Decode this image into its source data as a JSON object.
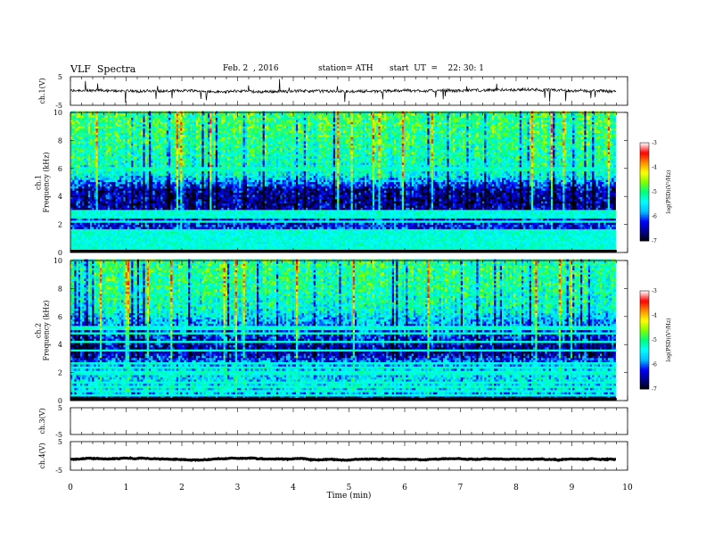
{
  "header": {
    "title": "VLF  Spectra",
    "date": "Feb. 2  , 2016",
    "station": "station= ATH",
    "start": "start  UT  =    22: 30: 1"
  },
  "chart_data": [
    {
      "type": "line",
      "name": "ch1-waveform",
      "ylabel": "ch.1(V)",
      "ylim": [
        -5,
        5
      ],
      "yticks": [
        "5",
        "-5"
      ],
      "baseline": 0,
      "noise": 0.5,
      "xlim": [
        0,
        10
      ]
    },
    {
      "type": "heatmap",
      "name": "ch1-spectrogram",
      "ylabel": "ch.1\nFrequency (kHz)",
      "ylim": [
        0,
        10
      ],
      "yticks": [
        "0",
        "2",
        "4",
        "6",
        "8",
        "10"
      ],
      "xlim": [
        0,
        10
      ],
      "data_end_min": 9.8,
      "colorbar": {
        "label": "log(PSD)(V²/Hz)",
        "range": [
          -7,
          -3
        ],
        "ticks": [
          "-3",
          "-4",
          "-5",
          "-6",
          "-7"
        ],
        "colors": [
          "#000000",
          "#00008b",
          "#0000ff",
          "#00bfff",
          "#00ffff",
          "#00ff7f",
          "#7fff00",
          "#ffff00",
          "#ff8c00",
          "#ff0000",
          "#ffffff"
        ]
      },
      "bands_khz": [
        0.2,
        0.4,
        0.6,
        0.8,
        1.0,
        1.2,
        1.5,
        2.2,
        2.6,
        2.9,
        6.0
      ],
      "profile": [
        {
          "f": 0,
          "v": -6.8
        },
        {
          "f": 0.5,
          "v": -6.0
        },
        {
          "f": 1.5,
          "v": -6.2
        },
        {
          "f": 2.5,
          "v": -6.3
        },
        {
          "f": 3.5,
          "v": -6.6
        },
        {
          "f": 4.5,
          "v": -6.5
        },
        {
          "f": 5.5,
          "v": -5.4
        },
        {
          "f": 6.5,
          "v": -5.2
        },
        {
          "f": 8,
          "v": -5.0
        },
        {
          "f": 10,
          "v": -4.9
        }
      ]
    },
    {
      "type": "heatmap",
      "name": "ch2-spectrogram",
      "ylabel": "ch.2\nFrequency (kHz)",
      "ylim": [
        0,
        10
      ],
      "yticks": [
        "0",
        "2",
        "4",
        "6",
        "8",
        "10"
      ],
      "xlim": [
        0,
        10
      ],
      "data_end_min": 9.8,
      "colorbar": {
        "label": "log(PSD)(V²/Hz)",
        "range": [
          -7,
          -3
        ],
        "ticks": [
          "-3",
          "-4",
          "-5",
          "-6",
          "-7"
        ],
        "colors": [
          "#000000",
          "#00008b",
          "#0000ff",
          "#00bfff",
          "#00ffff",
          "#00ff7f",
          "#7fff00",
          "#ffff00",
          "#ff8c00",
          "#ff0000",
          "#ffffff"
        ]
      },
      "bands_khz": [
        0.4,
        0.7,
        1.0,
        1.3,
        2.0,
        2.4,
        2.7,
        3.6,
        4.2,
        4.8,
        5.2
      ],
      "profile": [
        {
          "f": 0,
          "v": -6.9
        },
        {
          "f": 0.6,
          "v": -5.6
        },
        {
          "f": 1.5,
          "v": -5.5
        },
        {
          "f": 2.5,
          "v": -5.7
        },
        {
          "f": 3.5,
          "v": -6.6
        },
        {
          "f": 4.5,
          "v": -6.2
        },
        {
          "f": 5.5,
          "v": -5.8
        },
        {
          "f": 6.5,
          "v": -5.3
        },
        {
          "f": 8,
          "v": -5.1
        },
        {
          "f": 10,
          "v": -5.0
        }
      ]
    },
    {
      "type": "line",
      "name": "ch3-waveform",
      "ylabel": "ch.3(V)",
      "ylim": [
        -5,
        5
      ],
      "yticks": [
        "5",
        "-5"
      ],
      "baseline": null,
      "xlim": [
        0,
        10
      ]
    },
    {
      "type": "line",
      "name": "ch4-waveform",
      "ylabel": "ch.4(V)",
      "ylim": [
        -5,
        5
      ],
      "yticks": [
        "5",
        "-5"
      ],
      "baseline": -1.2,
      "noise": 0.08,
      "xlim": [
        0,
        10
      ]
    }
  ],
  "xaxis": {
    "label": "Time  (min)",
    "ticks": [
      "0",
      "1",
      "2",
      "3",
      "4",
      "5",
      "6",
      "7",
      "8",
      "9",
      "10"
    ]
  }
}
